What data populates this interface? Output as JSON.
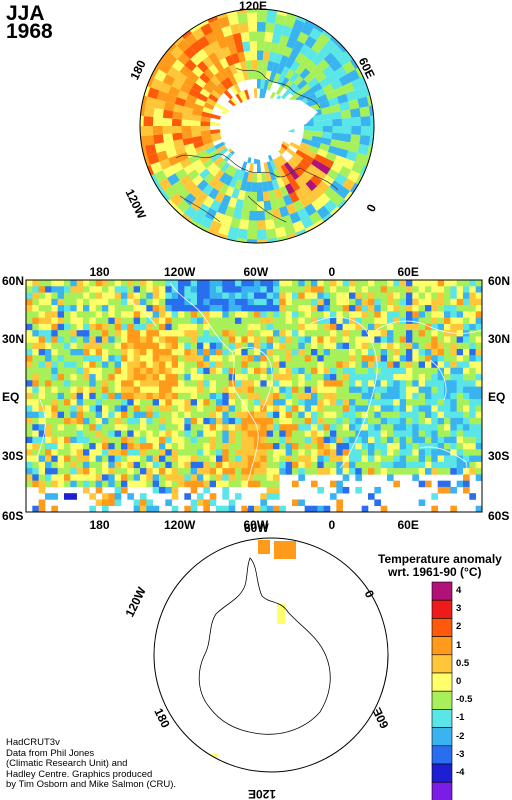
{
  "header": {
    "season": "JJA",
    "year": "1968"
  },
  "north_map": {
    "lon_labels": {
      "top": "120E",
      "right": "60E",
      "bottom_right": "0",
      "left": "180",
      "bottom_left": "120W"
    }
  },
  "map": {
    "top_lon_labels": [
      "180",
      "120W",
      "60W",
      "0",
      "60E"
    ],
    "bottom_lon_labels": [
      "180",
      "120W",
      "60W",
      "0",
      "60E"
    ],
    "lat_labels": [
      "60N",
      "30N",
      "EQ",
      "30S",
      "60S"
    ]
  },
  "south_map": {
    "lon_labels": {
      "top_left": "120W",
      "top": "60W",
      "right": "0",
      "left": "180",
      "bottom_right": "60E",
      "bottom": "120E"
    }
  },
  "legend": {
    "title_line1": "Temperature anomaly",
    "title_line2": "wrt. 1961-90  (°C)",
    "entries": [
      {
        "label": "4",
        "color": "#b0127a"
      },
      {
        "label": "3",
        "color": "#f01a1a"
      },
      {
        "label": "2",
        "color": "#ff5a0a"
      },
      {
        "label": "1",
        "color": "#ff9a1a"
      },
      {
        "label": "0.5",
        "color": "#ffc63a"
      },
      {
        "label": "0",
        "color": "#ffff6a"
      },
      {
        "label": "-0.5",
        "color": "#a8f05a"
      },
      {
        "label": "-1",
        "color": "#5ae6e6"
      },
      {
        "label": "-2",
        "color": "#3ab4f0"
      },
      {
        "label": "-3",
        "color": "#2a6ef0"
      },
      {
        "label": "-4",
        "color": "#1e1ed2"
      },
      {
        "label": "",
        "color": "#7a1ee6"
      }
    ]
  },
  "credits": [
    "HadCRUT3v",
    "Data from Phil Jones",
    "(Climatic Research Unit) and",
    "Hadley Centre.  Graphics produced",
    "by Tim Osborn and Mike Salmon (CRU)."
  ]
}
